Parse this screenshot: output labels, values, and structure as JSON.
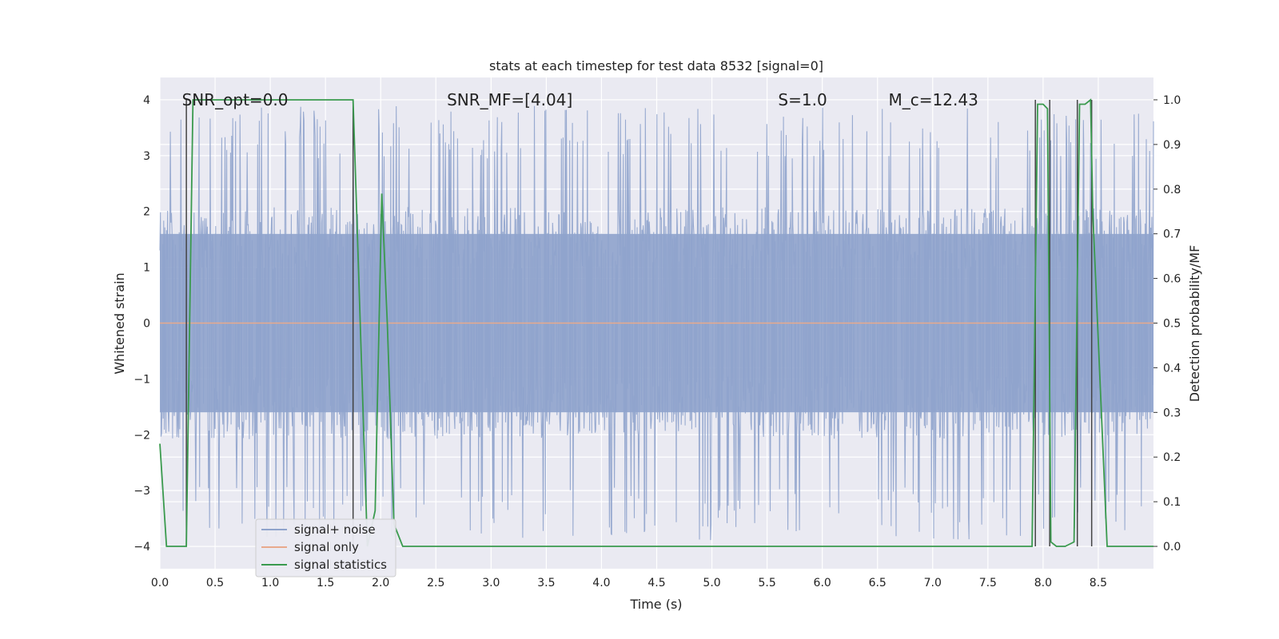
{
  "chart_data": {
    "type": "line",
    "title": "stats at each timestep for test data 8532 [signal=0]",
    "xlabel": "Time (s)",
    "ylabel": "Whitened strain",
    "ylabel_right": "Detection probability/MF",
    "xlim": [
      0.0,
      9.0
    ],
    "ylim": [
      -4.4,
      4.4
    ],
    "ylim_right": [
      -0.05,
      1.05
    ],
    "x_ticks": [
      0.0,
      0.5,
      1.0,
      1.5,
      2.0,
      2.5,
      3.0,
      3.5,
      4.0,
      4.5,
      5.0,
      5.5,
      6.0,
      6.5,
      7.0,
      7.5,
      8.0,
      8.5
    ],
    "x_tick_labels": [
      "0.0",
      "0.5",
      "1.0",
      "1.5",
      "2.0",
      "2.5",
      "3.0",
      "3.5",
      "4.0",
      "4.5",
      "5.0",
      "5.5",
      "6.0",
      "6.5",
      "7.0",
      "7.5",
      "8.0",
      "8.5"
    ],
    "y_ticks": [
      -4,
      -3,
      -2,
      -1,
      0,
      1,
      2,
      3,
      4
    ],
    "y_tick_labels": [
      "−4",
      "−3",
      "−2",
      "−1",
      "0",
      "1",
      "2",
      "3",
      "4"
    ],
    "y_right_ticks": [
      0.0,
      0.1,
      0.2,
      0.3,
      0.4,
      0.5,
      0.6,
      0.7,
      0.8,
      0.9,
      1.0
    ],
    "y_right_tick_labels": [
      "0.0",
      "0.1",
      "0.2",
      "0.3",
      "0.4",
      "0.5",
      "0.6",
      "0.7",
      "0.8",
      "0.9",
      "1.0"
    ],
    "grid": true,
    "annotations": [
      {
        "key": "snr-opt",
        "text": "SNR_opt=0.0",
        "x": 0.2,
        "y": 4.0
      },
      {
        "key": "snr-mf",
        "text": "SNR_MF=[4.04]",
        "x": 2.6,
        "y": 4.0
      },
      {
        "key": "s-value",
        "text": "S=1.0",
        "x": 5.6,
        "y": 4.0
      },
      {
        "key": "chirp-mass",
        "text": "M_c=12.43",
        "x": 6.6,
        "y": 4.0
      }
    ],
    "legend": {
      "position": "lower-left",
      "entries": [
        {
          "label": "signal+ noise",
          "color": "#8fa3cc"
        },
        {
          "label": "signal only",
          "color": "#e8a98c"
        },
        {
          "label": "signal statistics",
          "color": "#3a9a4e"
        }
      ]
    },
    "series": [
      {
        "name": "signal+ noise",
        "axis": "left",
        "style": "dense-noise",
        "color": "#8fa3cc",
        "core_band": [
          -1.6,
          1.6
        ],
        "peak_range": [
          -3.9,
          3.9
        ],
        "sample_count": 1800
      },
      {
        "name": "signal only",
        "axis": "left",
        "color": "#e8a98c",
        "x": [
          0.0,
          9.0
        ],
        "y": [
          0.0,
          0.0
        ]
      },
      {
        "name": "signal statistics",
        "axis": "right",
        "color": "#3a9a4e",
        "x": [
          0.0,
          0.06,
          0.24,
          0.3,
          0.5,
          1.0,
          1.5,
          1.75,
          1.88,
          1.95,
          2.01,
          2.06,
          2.12,
          2.2,
          3.0,
          4.0,
          5.0,
          6.0,
          7.0,
          7.9,
          7.95,
          8.0,
          8.04,
          8.07,
          8.12,
          8.2,
          8.28,
          8.33,
          8.38,
          8.43,
          8.45,
          8.58,
          8.7,
          9.0
        ],
        "y": [
          0.23,
          0.0,
          0.0,
          1.0,
          1.0,
          1.0,
          1.0,
          1.0,
          0.0,
          0.08,
          0.79,
          0.5,
          0.05,
          0.0,
          0.0,
          0.0,
          0.0,
          0.0,
          0.0,
          0.0,
          0.99,
          0.99,
          0.98,
          0.01,
          0.0,
          0.0,
          0.01,
          0.99,
          0.99,
          1.0,
          0.75,
          0.0,
          0.0,
          0.0
        ]
      }
    ],
    "vertical_markers": {
      "color": "#444444",
      "x": [
        0.24,
        1.75,
        7.93,
        8.06,
        8.31,
        8.44
      ]
    }
  }
}
